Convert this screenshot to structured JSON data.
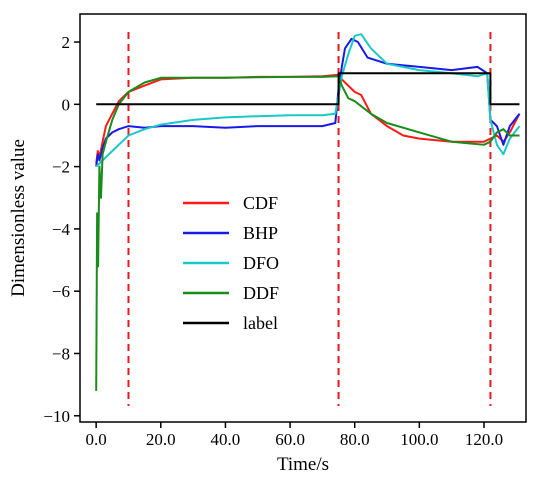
{
  "chart_data": {
    "type": "line",
    "xlabel": "Time/s",
    "ylabel": "Dimensionless value",
    "xlim": [
      -5,
      133
    ],
    "ylim": [
      -10.2,
      2.9
    ],
    "x_ticks": [
      0,
      20,
      40,
      60,
      80,
      100,
      120
    ],
    "x_tick_labels": [
      "0.0",
      "20.0",
      "40.0",
      "60.0",
      "80.0",
      "100.0",
      "120.0"
    ],
    "y_ticks": [
      2,
      0,
      -2,
      -4,
      -6,
      -8,
      -10
    ],
    "y_tick_labels": [
      "2",
      "0",
      "−2",
      "−4",
      "−6",
      "−8",
      "−10"
    ],
    "grid": false,
    "legend_position": "center-left",
    "vertical_markers": [
      {
        "x": 10,
        "color": "#e8191c",
        "style": "dashed"
      },
      {
        "x": 75,
        "color": "#e8191c",
        "style": "dashed"
      },
      {
        "x": 122,
        "color": "#e8191c",
        "style": "dashed"
      }
    ],
    "series": [
      {
        "name": "CDF",
        "color": "#ff1a1a",
        "x": [
          0,
          0.5,
          1,
          2,
          3,
          5,
          7,
          10,
          15,
          20,
          30,
          40,
          50,
          60,
          70,
          75,
          76,
          78,
          80,
          82,
          85,
          90,
          95,
          100,
          110,
          120,
          122,
          124,
          126,
          128,
          131
        ],
        "y": [
          -1.9,
          -1.5,
          -1.7,
          -1.2,
          -0.7,
          -0.3,
          0.1,
          0.4,
          0.6,
          0.8,
          0.85,
          0.85,
          0.88,
          0.88,
          0.9,
          0.95,
          0.8,
          0.6,
          0.4,
          0.3,
          -0.3,
          -0.7,
          -1.0,
          -1.1,
          -1.2,
          -1.2,
          -1.1,
          -1.0,
          -1.2,
          -0.9,
          -0.3
        ]
      },
      {
        "name": "BHP",
        "color": "#1a1ae6",
        "x": [
          0,
          0.5,
          1,
          2,
          3,
          5,
          7,
          10,
          15,
          20,
          30,
          40,
          50,
          60,
          70,
          74,
          75,
          76,
          77,
          79,
          81,
          84,
          90,
          100,
          110,
          118,
          121,
          122,
          124,
          126,
          128,
          131
        ],
        "y": [
          -2.0,
          -1.6,
          -1.8,
          -1.4,
          -1.1,
          -0.9,
          -0.8,
          -0.7,
          -0.75,
          -0.7,
          -0.7,
          -0.75,
          -0.7,
          -0.7,
          -0.7,
          -0.6,
          0.5,
          1.2,
          1.8,
          2.1,
          2.0,
          1.5,
          1.3,
          1.2,
          1.1,
          1.2,
          1.0,
          -0.5,
          -0.7,
          -1.3,
          -0.7,
          -0.3
        ]
      },
      {
        "name": "DFO",
        "color": "#1ac8c8",
        "x": [
          0,
          2,
          5,
          8,
          10,
          15,
          20,
          30,
          40,
          50,
          60,
          70,
          74,
          75,
          76,
          78,
          80,
          82,
          85,
          90,
          100,
          110,
          118,
          121,
          122,
          124,
          126,
          128,
          131
        ],
        "y": [
          -2.0,
          -1.8,
          -1.5,
          -1.2,
          -1.0,
          -0.8,
          -0.65,
          -0.5,
          -0.42,
          -0.38,
          -0.35,
          -0.35,
          -0.3,
          0.3,
          0.9,
          1.6,
          2.2,
          2.25,
          1.8,
          1.3,
          1.1,
          1.0,
          0.9,
          1.0,
          -0.5,
          -1.3,
          -1.6,
          -1.1,
          -0.7
        ]
      },
      {
        "name": "DDF",
        "color": "#1a8c1a",
        "x": [
          0,
          0.3,
          0.6,
          1,
          1.5,
          2,
          3,
          5,
          7,
          10,
          15,
          20,
          30,
          40,
          50,
          60,
          70,
          75,
          76,
          78,
          80,
          85,
          90,
          100,
          110,
          120,
          122,
          124,
          126,
          128,
          131
        ],
        "y": [
          -9.2,
          -3.5,
          -5.2,
          -2.0,
          -3.0,
          -1.6,
          -1.2,
          -0.5,
          0.0,
          0.4,
          0.7,
          0.85,
          0.85,
          0.85,
          0.87,
          0.88,
          0.88,
          0.9,
          0.6,
          0.2,
          0.1,
          -0.3,
          -0.6,
          -0.9,
          -1.2,
          -1.3,
          -1.2,
          -0.9,
          -0.8,
          -1.0,
          -1.0
        ]
      },
      {
        "name": "label",
        "color": "#000000",
        "x": [
          0,
          75,
          75,
          122,
          122,
          131
        ],
        "y": [
          0,
          0,
          1,
          1,
          0,
          0
        ]
      }
    ]
  }
}
